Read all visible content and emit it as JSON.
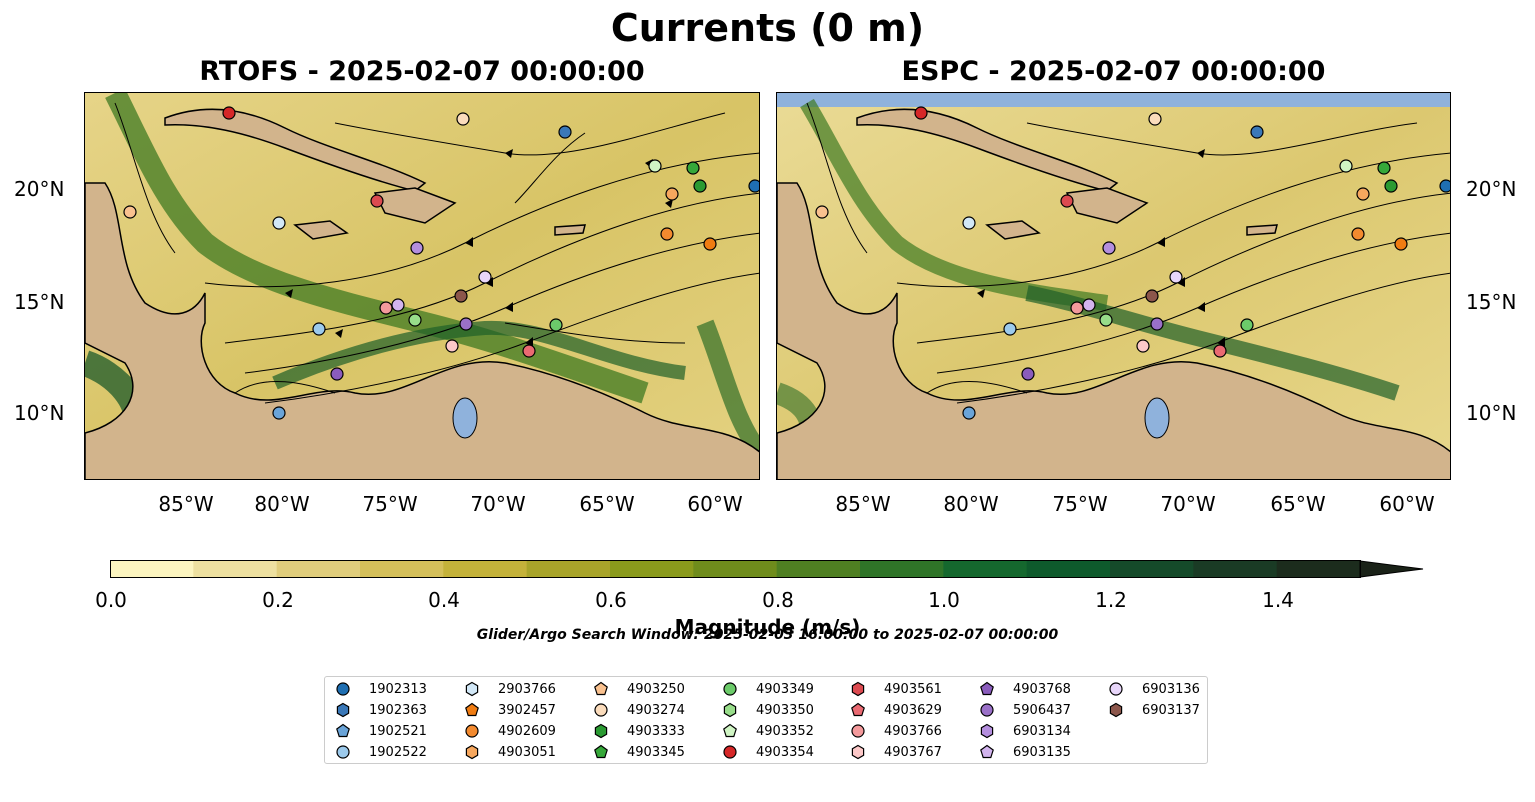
{
  "title": "Currents (0 m)",
  "panels": [
    {
      "title": "RTOFS - 2025-02-07 00:00:00"
    },
    {
      "title": "ESPC - 2025-02-07 00:00:00"
    }
  ],
  "lon_ticks": [
    "85°W",
    "80°W",
    "75°W",
    "70°W",
    "65°W",
    "60°W"
  ],
  "lat_ticks": [
    "20°N",
    "15°N",
    "10°N"
  ],
  "colorbar": {
    "label": "Magnitude (m/s)",
    "ticks": [
      "0.0",
      "0.2",
      "0.4",
      "0.6",
      "0.8",
      "1.0",
      "1.2",
      "1.4"
    ],
    "colors": [
      "#fcf5c0",
      "#ede0a0",
      "#e0cd7c",
      "#d4bf5a",
      "#c4b23a",
      "#a8a42a",
      "#8a9a1c",
      "#6f8c1c",
      "#4f7f22",
      "#2f7428",
      "#15682e",
      "#0e5a2c",
      "#154a2a",
      "#1a3b25",
      "#1c2c1d",
      "#1a2218"
    ]
  },
  "search_window": "Glider/Argo Search Window: 2025-02-03 16:00:00 to 2025-02-07 00:00:00",
  "legend": [
    {
      "id": "1902313",
      "marker": "circle",
      "color": "#1f6fb2"
    },
    {
      "id": "1902363",
      "marker": "hexagon",
      "color": "#3a78b8"
    },
    {
      "id": "1902521",
      "marker": "pentagon",
      "color": "#6aa4d8"
    },
    {
      "id": "1902522",
      "marker": "circle",
      "color": "#9ccaec"
    },
    {
      "id": "2903766",
      "marker": "hexagon",
      "color": "#d2e8f7"
    },
    {
      "id": "3902457",
      "marker": "pentagon",
      "color": "#f07c12"
    },
    {
      "id": "4902609",
      "marker": "circle",
      "color": "#f38a2f"
    },
    {
      "id": "4903051",
      "marker": "hexagon",
      "color": "#f6a75e"
    },
    {
      "id": "4903250",
      "marker": "pentagon",
      "color": "#f9c18f"
    },
    {
      "id": "4903274",
      "marker": "circle",
      "color": "#fbdcbc"
    },
    {
      "id": "4903333",
      "marker": "hexagon",
      "color": "#2a9a32"
    },
    {
      "id": "4903345",
      "marker": "pentagon",
      "color": "#36a83a"
    },
    {
      "id": "4903349",
      "marker": "circle",
      "color": "#6ccb6a"
    },
    {
      "id": "4903350",
      "marker": "hexagon",
      "color": "#98dd8a"
    },
    {
      "id": "4903352",
      "marker": "pentagon",
      "color": "#d0f5c4"
    },
    {
      "id": "4903354",
      "marker": "circle",
      "color": "#d62728"
    },
    {
      "id": "4903561",
      "marker": "hexagon",
      "color": "#dc4a50"
    },
    {
      "id": "4903629",
      "marker": "pentagon",
      "color": "#ea6a72"
    },
    {
      "id": "4903766",
      "marker": "circle",
      "color": "#f49a9c"
    },
    {
      "id": "4903767",
      "marker": "hexagon",
      "color": "#fcc8c8"
    },
    {
      "id": "4903768",
      "marker": "pentagon",
      "color": "#8a5cbc"
    },
    {
      "id": "5906437",
      "marker": "circle",
      "color": "#9a70c8"
    },
    {
      "id": "6903134",
      "marker": "hexagon",
      "color": "#b48ede"
    },
    {
      "id": "6903135",
      "marker": "pentagon",
      "color": "#d2b4ee"
    },
    {
      "id": "6903136",
      "marker": "circle",
      "color": "#e8d6fa"
    },
    {
      "id": "6903137",
      "marker": "hexagon",
      "color": "#8c564b"
    }
  ]
}
